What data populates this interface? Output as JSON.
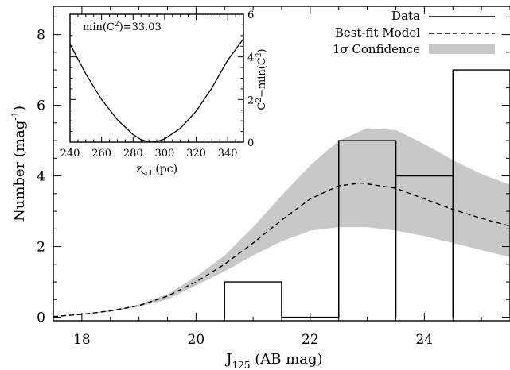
{
  "chart_data": [
    {
      "type": "line",
      "xlabel": "J",
      "xlabel_sub": "125",
      "xlabel_suffix": " (AB mag)",
      "ylabel": "Number (mag",
      "ylabel_sup": "-1",
      "ylabel_suffix": ")",
      "xlim": [
        17.5,
        25.5
      ],
      "ylim": [
        -0.1,
        8.8
      ],
      "xticks": [
        18,
        20,
        22,
        24
      ],
      "yticks": [
        0,
        2,
        4,
        6,
        8
      ],
      "legend": {
        "position": "top-right",
        "entries": [
          {
            "label": "Data",
            "style": "solid"
          },
          {
            "label": "Best-fit Model",
            "style": "dashed"
          },
          {
            "label": "1σ Confidence",
            "style": "band"
          }
        ]
      },
      "series": [
        {
          "name": "Data",
          "style": "histogram",
          "bins": [
            {
              "x0": 20.5,
              "x1": 21.5,
              "value": 1
            },
            {
              "x0": 21.5,
              "x1": 22.5,
              "value": 0
            },
            {
              "x0": 22.5,
              "x1": 23.5,
              "value": 5
            },
            {
              "x0": 23.5,
              "x1": 24.5,
              "value": 4
            },
            {
              "x0": 24.5,
              "x1": 25.5,
              "value": 7
            }
          ]
        },
        {
          "name": "Best-fit Model",
          "style": "dashed",
          "x": [
            17.5,
            18.0,
            18.5,
            19.0,
            19.5,
            20.0,
            20.5,
            21.0,
            21.5,
            22.0,
            22.5,
            22.9,
            23.5,
            24.0,
            24.5,
            25.0,
            25.5
          ],
          "y": [
            0.02,
            0.08,
            0.18,
            0.33,
            0.6,
            1.0,
            1.5,
            2.1,
            2.75,
            3.35,
            3.72,
            3.8,
            3.65,
            3.35,
            3.05,
            2.8,
            2.58
          ]
        },
        {
          "name": "1σ Confidence",
          "style": "band",
          "x": [
            17.5,
            18.0,
            18.5,
            19.0,
            19.5,
            20.0,
            20.5,
            21.0,
            21.5,
            22.0,
            22.5,
            23.0,
            23.5,
            24.0,
            24.5,
            25.0,
            25.5
          ],
          "y_low": [
            0.02,
            0.07,
            0.16,
            0.3,
            0.5,
            0.9,
            1.3,
            1.75,
            2.15,
            2.45,
            2.55,
            2.55,
            2.45,
            2.3,
            2.1,
            1.9,
            1.7
          ],
          "y_high": [
            0.03,
            0.09,
            0.2,
            0.36,
            0.65,
            1.15,
            1.75,
            2.55,
            3.45,
            4.3,
            5.0,
            5.35,
            5.3,
            4.9,
            4.45,
            4.05,
            3.75
          ]
        }
      ]
    },
    {
      "type": "line",
      "annotation": "min(C",
      "annotation_sup": "2",
      "annotation_suffix": ")=33.03",
      "xlabel": "z",
      "xlabel_sub": "scl",
      "xlabel_suffix": " (pc)",
      "ylabel": "C",
      "ylabel_sup": "2",
      "ylabel_mid": "−min(C",
      "ylabel_sup2": "2",
      "ylabel_suffix": ")",
      "xlim": [
        240,
        350
      ],
      "ylim": [
        0,
        6
      ],
      "xticks": [
        240,
        260,
        280,
        300,
        320,
        340
      ],
      "yticks": [
        0,
        2,
        4,
        6
      ],
      "yaxis_side": "right",
      "series": [
        {
          "x": [
            240,
            250,
            260,
            270,
            280,
            285,
            290,
            292,
            295,
            300,
            310,
            320,
            330,
            340,
            350
          ],
          "y": [
            4.6,
            3.2,
            2.0,
            1.05,
            0.35,
            0.12,
            0.01,
            0.0,
            0.03,
            0.15,
            0.65,
            1.45,
            2.55,
            3.85,
            4.85
          ]
        }
      ]
    }
  ]
}
